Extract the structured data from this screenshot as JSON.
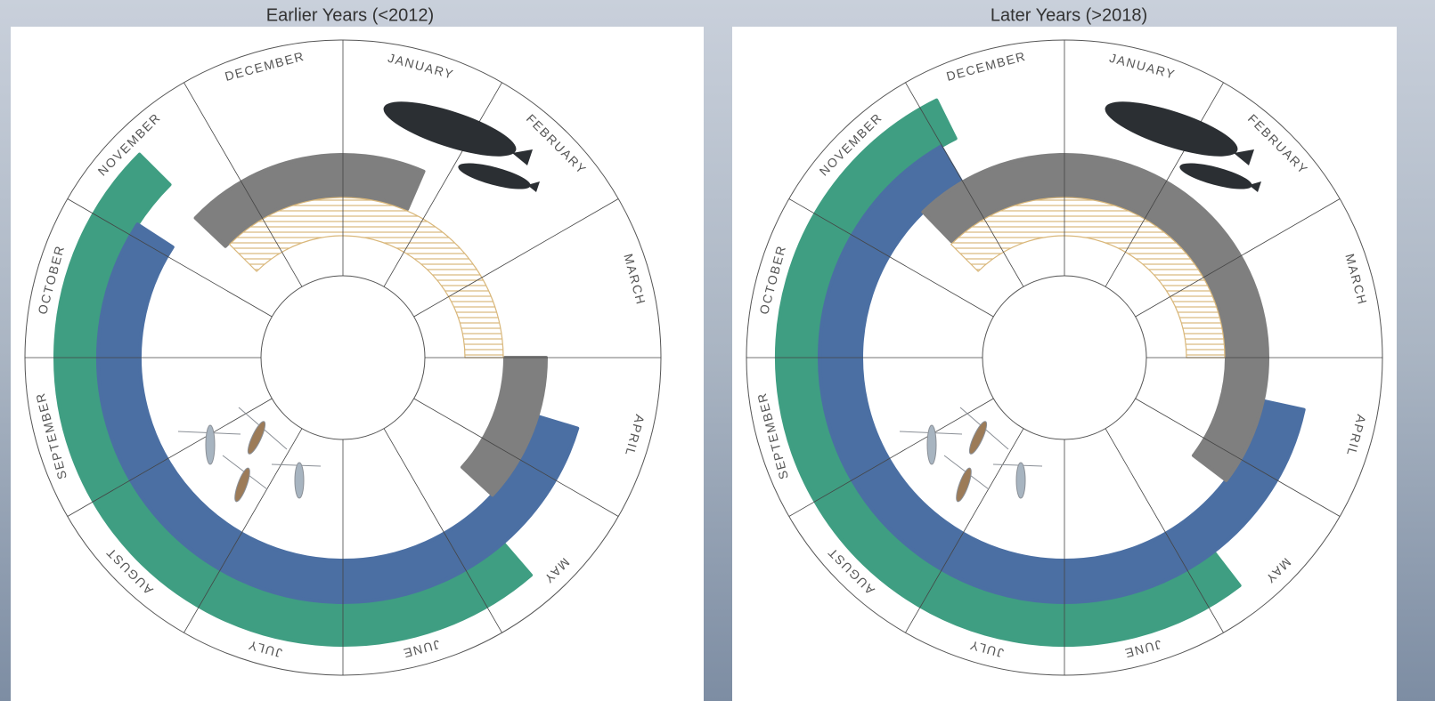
{
  "months": [
    "JANUARY",
    "FEBRUARY",
    "MARCH",
    "APRIL",
    "MAY",
    "JUNE",
    "JULY",
    "AUGUST",
    "SEPTEMBER",
    "OCTOBER",
    "NOVEMBER",
    "DECEMBER"
  ],
  "panels": [
    {
      "title": "Earlier Years (<2012)",
      "arcs": [
        {
          "color": "#3f9e82",
          "start": 4.64,
          "end": 10.5
        },
        {
          "color": "#4b6fa3",
          "start": 3.56,
          "end": 10.1
        },
        {
          "color": "#7f7f7f",
          "start": 10.45,
          "end": 12.78
        },
        {
          "color": "#7f7f7f",
          "start": 3.0,
          "end": 4.42
        },
        {
          "color": "#d9b77a",
          "pattern": "hatch",
          "start": 10.5,
          "end": 15.0
        }
      ]
    },
    {
      "title": "Later Years (>2018)",
      "arcs": [
        {
          "color": "#3f9e82",
          "start": 4.75,
          "end": 11.12
        },
        {
          "color": "#4b6fa3",
          "start": 3.41,
          "end": 10.99
        },
        {
          "color": "#7f7f7f",
          "start": 10.53,
          "end": 16.24
        },
        {
          "color": "#d9b77a",
          "pattern": "hatch",
          "start": 10.5,
          "end": 15.0
        }
      ]
    }
  ]
}
